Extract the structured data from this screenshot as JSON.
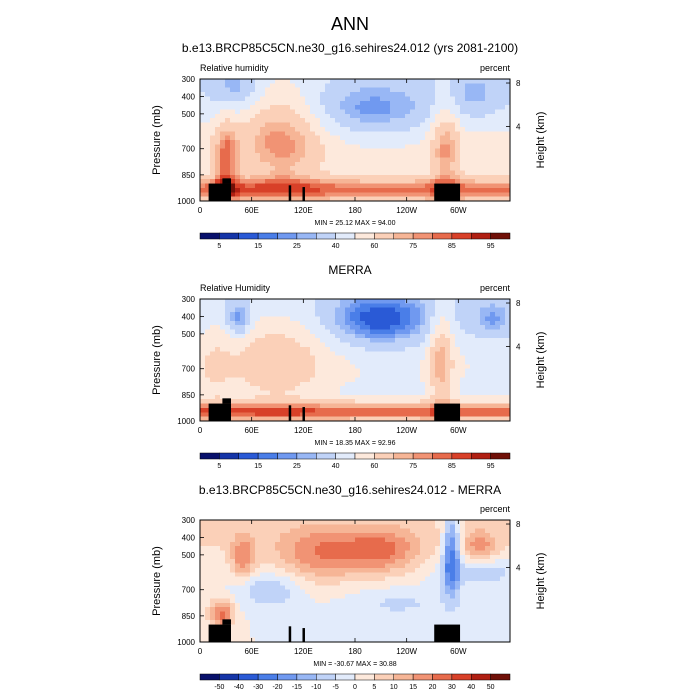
{
  "figure": {
    "title": "ANN"
  },
  "colors": {
    "background": "#ffffff",
    "terrain": "#000000"
  },
  "chart_data": [
    {
      "type": "heatmap",
      "title": "b.e13.BRCP85C5CN.ne30_g16.sehires24.012 (yrs 2081-2100)",
      "left_label": "Relative humidity",
      "units": "percent",
      "ylabel": "Pressure (mb)",
      "ylabel_right": "Height (km)",
      "x_ticks": [
        "0",
        "60E",
        "120E",
        "180",
        "120W",
        "60W"
      ],
      "x_tick_values": [
        0,
        60,
        120,
        180,
        240,
        300
      ],
      "xlim": [
        0,
        360
      ],
      "y_ticks": [
        "300",
        "400",
        "500",
        "700",
        "850",
        "1000"
      ],
      "y_tick_values": [
        300,
        400,
        500,
        700,
        850,
        1000
      ],
      "ylim": [
        300,
        1000
      ],
      "height_ticks": [
        "8",
        "4"
      ],
      "height_tick_values": [
        8,
        4
      ],
      "min_max": "MIN = 25.12  MAX = 94.00",
      "colorbar_labels": [
        "5",
        "15",
        "25",
        "40",
        "60",
        "75",
        "85",
        "95"
      ],
      "colorbar_colors": [
        "#08106b",
        "#1535a8",
        "#2a5ad6",
        "#4a7ee8",
        "#7099f0",
        "#98b7f5",
        "#c0d3f8",
        "#e2ebfb",
        "#fde9dc",
        "#fbd0b8",
        "#f6b596",
        "#f19374",
        "#e76b4c",
        "#d84028",
        "#b01f12",
        "#701008"
      ],
      "colorbar_levels": [
        5,
        10,
        15,
        20,
        25,
        30,
        40,
        50,
        60,
        70,
        75,
        80,
        85,
        90,
        95
      ],
      "field": "model"
    },
    {
      "type": "heatmap",
      "title": "MERRA",
      "left_label": "Relative Humidity",
      "units": "percent",
      "ylabel": "Pressure (mb)",
      "ylabel_right": "Height (km)",
      "x_ticks": [
        "0",
        "60E",
        "120E",
        "180",
        "120W",
        "60W"
      ],
      "x_tick_values": [
        0,
        60,
        120,
        180,
        240,
        300
      ],
      "xlim": [
        0,
        360
      ],
      "y_ticks": [
        "300",
        "400",
        "500",
        "700",
        "850",
        "1000"
      ],
      "y_tick_values": [
        300,
        400,
        500,
        700,
        850,
        1000
      ],
      "ylim": [
        300,
        1000
      ],
      "height_ticks": [
        "8",
        "4"
      ],
      "height_tick_values": [
        8,
        4
      ],
      "min_max": "MIN = 18.35  MAX = 92.96",
      "colorbar_labels": [
        "5",
        "15",
        "25",
        "40",
        "60",
        "75",
        "85",
        "95"
      ],
      "colorbar_colors": [
        "#08106b",
        "#1535a8",
        "#2a5ad6",
        "#4a7ee8",
        "#7099f0",
        "#98b7f5",
        "#c0d3f8",
        "#e2ebfb",
        "#fde9dc",
        "#fbd0b8",
        "#f6b596",
        "#f19374",
        "#e76b4c",
        "#d84028",
        "#b01f12",
        "#701008"
      ],
      "colorbar_levels": [
        5,
        10,
        15,
        20,
        25,
        30,
        40,
        50,
        60,
        70,
        75,
        80,
        85,
        90,
        95
      ],
      "field": "obs"
    },
    {
      "type": "heatmap",
      "title": "b.e13.BRCP85C5CN.ne30_g16.sehires24.012 - MERRA",
      "left_label": "",
      "units": "percent",
      "ylabel": "Pressure (mb)",
      "ylabel_right": "Height (km)",
      "x_ticks": [
        "0",
        "60E",
        "120E",
        "180",
        "120W",
        "60W"
      ],
      "x_tick_values": [
        0,
        60,
        120,
        180,
        240,
        300
      ],
      "xlim": [
        0,
        360
      ],
      "y_ticks": [
        "300",
        "400",
        "500",
        "700",
        "850",
        "1000"
      ],
      "y_tick_values": [
        300,
        400,
        500,
        700,
        850,
        1000
      ],
      "ylim": [
        300,
        1000
      ],
      "height_ticks": [
        "8",
        "4"
      ],
      "height_tick_values": [
        8,
        4
      ],
      "min_max": "MIN = -30.67  MAX = 30.88",
      "colorbar_labels": [
        "-50",
        "-40",
        "-30",
        "-20",
        "-15",
        "-10",
        "-5",
        "0",
        "5",
        "10",
        "15",
        "20",
        "30",
        "40",
        "50"
      ],
      "colorbar_colors": [
        "#08106b",
        "#1535a8",
        "#2a5ad6",
        "#4a7ee8",
        "#7099f0",
        "#98b7f5",
        "#c0d3f8",
        "#e2ebfb",
        "#fde9dc",
        "#fbd0b8",
        "#f6b596",
        "#f19374",
        "#e76b4c",
        "#d84028",
        "#b01f12",
        "#701008"
      ],
      "colorbar_levels": [
        -50,
        -40,
        -30,
        -20,
        -15,
        -10,
        -5,
        0,
        5,
        10,
        15,
        20,
        30,
        40,
        50
      ],
      "field": "diff"
    }
  ]
}
